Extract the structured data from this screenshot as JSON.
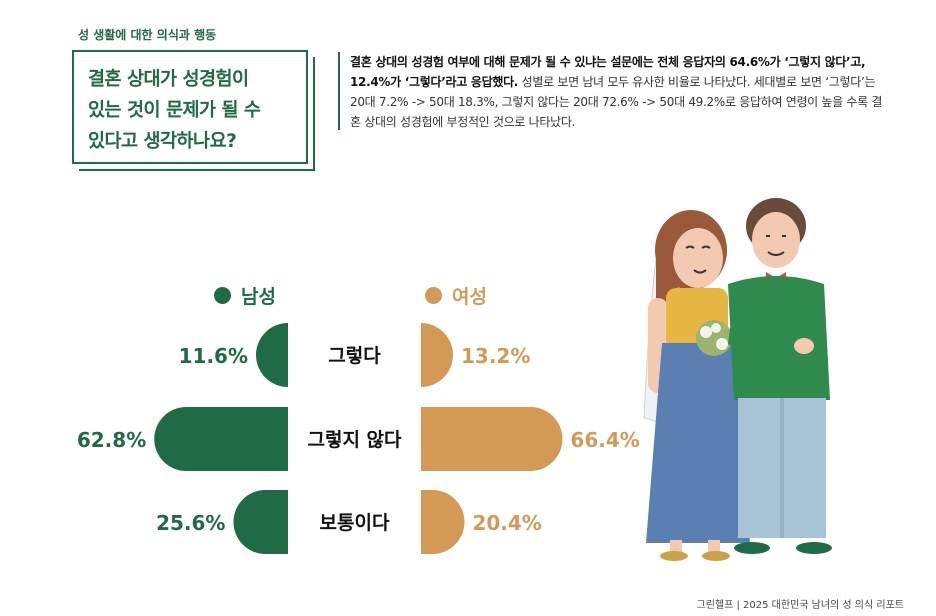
{
  "header": {
    "section_label": "성 생활에 대한 의식과 행동",
    "title_lines": [
      "결혼 상대가 성경험이",
      "있는 것이 문제가 될 수",
      "있다고 생각하나요?"
    ]
  },
  "description": {
    "bold_text": "결혼 상대의 성경험 여부에 대해 문제가 될 수 있냐는 설문에는 전체 응답자의 64.6%가 ‘그렇지 않다’고, 12.4%가 ‘그렇다’라고 응답했다.",
    "normal_text": " 성별로 보면 남녀 모두 유사한 비율로 나타났다. 세대별로 보면 ‘그렇다’는 20대 7.2% -> 50대 18.3%, 그렇지 않다는 20대 72.6% -> 50대 49.2%로 응답하여 연령이 높을 수록 결혼 상대의 성경험에 부정적인 것으로 나타났다."
  },
  "footer": {
    "text": "그린헬프 | 2025 대한민국 남녀의 성 의식 리포트"
  },
  "colors": {
    "male": "#1f6b45",
    "female": "#d49a55",
    "text": "#111111"
  },
  "chart_data": {
    "type": "bar",
    "categories": [
      "그렇다",
      "그렇지 않다",
      "보통이다"
    ],
    "series": [
      {
        "name": "남성",
        "values": [
          11.6,
          62.8,
          25.6
        ],
        "labels": [
          "11.6%",
          "62.8%",
          "25.6%"
        ]
      },
      {
        "name": "여성",
        "values": [
          13.2,
          66.4,
          20.4
        ],
        "labels": [
          "13.2%",
          "66.4%",
          "20.4%"
        ]
      }
    ],
    "unit": "%",
    "orientation": "horizontal-diverging",
    "legend": "top",
    "grid": false
  }
}
